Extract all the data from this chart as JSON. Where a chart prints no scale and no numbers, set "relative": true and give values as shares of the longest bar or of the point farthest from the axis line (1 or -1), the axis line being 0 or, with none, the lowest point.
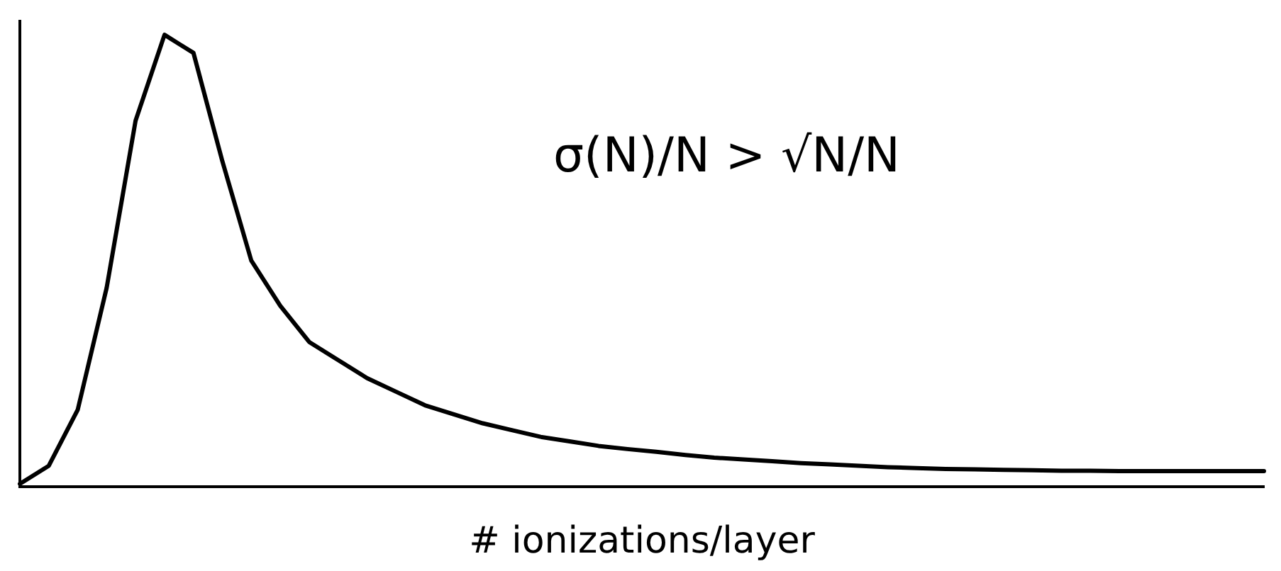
{
  "chart_data": {
    "type": "line",
    "relative": true,
    "xlabel": "# ionizations/layer",
    "annotations": [
      "σ(N)/N > √N/N"
    ],
    "legend": false,
    "grid": false,
    "marker": "none",
    "line_style": "solid",
    "categories": [
      null,
      null,
      null,
      null,
      null,
      null,
      null,
      null,
      null,
      null,
      null,
      null,
      null,
      null,
      null,
      null,
      null,
      null,
      null,
      null,
      null,
      null,
      null,
      null,
      null,
      null,
      null,
      null,
      null,
      null,
      null,
      null,
      null,
      null,
      null,
      null,
      null,
      null,
      null,
      null,
      null,
      null,
      null,
      null
    ],
    "series": [
      {
        "color": "#000000",
        "values": [
          0.006,
          0.046,
          0.17,
          0.44,
          0.81,
          1,
          0.96,
          0.72,
          0.5,
          0.4,
          0.32,
          0.28,
          0.24,
          0.21,
          0.18,
          0.16,
          0.14,
          0.125,
          0.11,
          0.1,
          0.09,
          0.083,
          0.077,
          0.07,
          0.064,
          0.06,
          0.056,
          0.052,
          0.049,
          0.046,
          0.043,
          0.041,
          0.039,
          0.038,
          0.037,
          0.036,
          0.035,
          0.035,
          0.034,
          0.034,
          0.034,
          0.034,
          0.034,
          0.034
        ]
      }
    ]
  }
}
